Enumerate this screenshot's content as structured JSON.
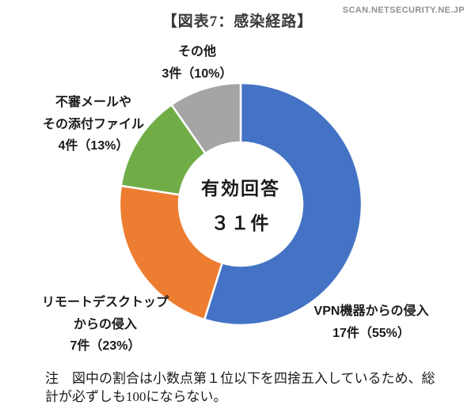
{
  "watermark": "SCAN.NETSECURITY.NE.JP",
  "title": "【図表7：感染経路】",
  "chart_data": {
    "type": "pie",
    "subtype": "donut",
    "title": "【図表7：感染経路】",
    "start_angle_deg": 0,
    "direction": "clockwise",
    "total": 31,
    "center_label_lines": [
      "有効回答",
      "３１件"
    ],
    "segments": [
      {
        "name": "vpn",
        "label": "VPN機器からの侵入",
        "label_lines": [
          "VPN機器からの侵入",
          "17件（55%）"
        ],
        "count": 17,
        "percent": 55,
        "color": "#4472C4"
      },
      {
        "name": "remote-desktop",
        "label": "リモートデスクトップからの侵入",
        "label_lines": [
          "リモートデスクトップ",
          "からの侵入",
          "7件（23%）"
        ],
        "count": 7,
        "percent": 23,
        "color": "#ED7D31"
      },
      {
        "name": "suspicious-mail",
        "label": "不審メールやその添付ファイル",
        "label_lines": [
          "不審メールや",
          "その添付ファイル",
          "4件（13%）"
        ],
        "count": 4,
        "percent": 13,
        "color": "#70AD47"
      },
      {
        "name": "other",
        "label": "その他",
        "label_lines": [
          "その他",
          "3件（10%）"
        ],
        "count": 3,
        "percent": 10,
        "color": "#A5A5A5"
      }
    ]
  },
  "note": {
    "line1": "注　図中の割合は小数点第１位以下を四捨五入しているため、総",
    "line2": "計が必ずしも100にならない。"
  }
}
